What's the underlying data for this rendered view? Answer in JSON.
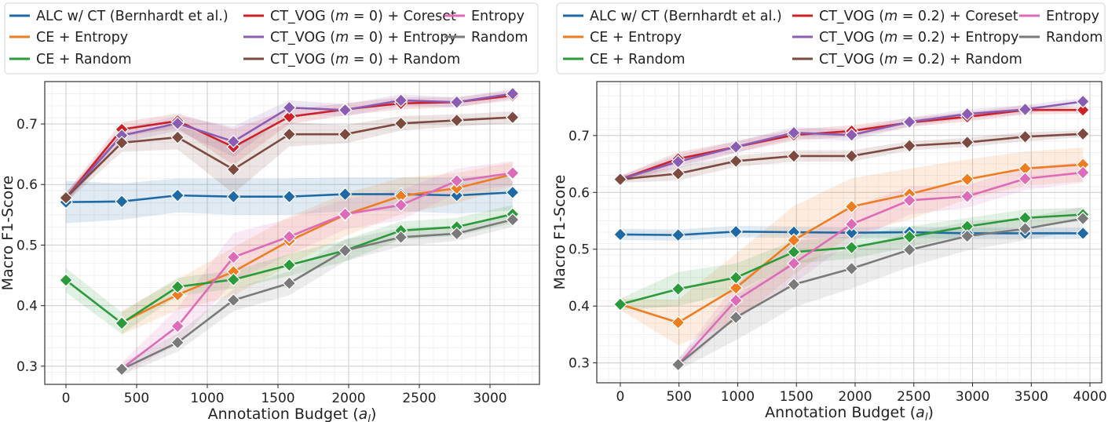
{
  "chart_data": [
    {
      "type": "line",
      "title": "",
      "xlabel": "Annotation Budget (a_l)",
      "xlabel_main": "Annotation Budget (",
      "xlabel_var": "a",
      "xlabel_sub": "l",
      "xlabel_close": ")",
      "ylabel": "Macro F1-Score",
      "xlim": [
        -150,
        3350
      ],
      "ylim": [
        0.27,
        0.77
      ],
      "xticks": [
        0,
        500,
        1000,
        1500,
        2000,
        2500,
        3000
      ],
      "xtick_labels": [
        "0",
        "500",
        "1000",
        "1500",
        "2000",
        "2500",
        "3000"
      ],
      "yticks": [
        0.3,
        0.4,
        0.5,
        0.6,
        0.7
      ],
      "ytick_labels": [
        "0.3",
        "0.4",
        "0.5",
        "0.6",
        "0.7"
      ],
      "grid": true,
      "legend": {
        "placement": "top",
        "columns": [
          [
            {
              "label": "ALC w/ CT (Bernhardt et al.)",
              "color": "#1f6aa5"
            },
            {
              "label": "CE + Entropy",
              "color": "#ee7d22"
            },
            {
              "label": "CE + Random",
              "color": "#2a9a3a"
            }
          ],
          [
            {
              "label_pre": "CT_VOG (",
              "label_var": "m",
              "label_post": " = 0) + Coreset",
              "color": "#cc2127"
            },
            {
              "label_pre": "CT_VOG (",
              "label_var": "m",
              "label_post": " = 0) + Entropy",
              "color": "#8a5cb2"
            },
            {
              "label_pre": "CT_VOG (",
              "label_var": "m",
              "label_post": " = 0) + Random",
              "color": "#7d4a40"
            }
          ],
          [
            {
              "label": "Entropy",
              "color": "#dd6cb8"
            },
            {
              "label": "Random",
              "color": "#7a7a7a"
            }
          ]
        ]
      },
      "series": [
        {
          "name": "ALC w/ CT (Bernhardt et al.)",
          "color": "#1f6aa5",
          "x": [
            0,
            395,
            790,
            1185,
            1580,
            1975,
            2370,
            2765,
            3160
          ],
          "y": [
            0.571,
            0.572,
            0.582,
            0.58,
            0.58,
            0.584,
            0.584,
            0.582,
            0.587
          ],
          "band": [
            0.035,
            0.03,
            0.028,
            0.03,
            0.03,
            0.028,
            0.028,
            0.03,
            0.03
          ]
        },
        {
          "name": "CE + Entropy",
          "color": "#ee7d22",
          "x": [
            395,
            790,
            1185,
            1580,
            1975,
            2370,
            2765,
            3160
          ],
          "y": [
            0.372,
            0.418,
            0.456,
            0.507,
            0.55,
            0.581,
            0.594,
            0.617
          ],
          "band": [
            0.02,
            0.025,
            0.04,
            0.04,
            0.035,
            0.03,
            0.025,
            0.02
          ]
        },
        {
          "name": "CE + Random",
          "color": "#2a9a3a",
          "x": [
            0,
            395,
            790,
            1185,
            1580,
            1975,
            2370,
            2765,
            3160
          ],
          "y": [
            0.442,
            0.371,
            0.431,
            0.443,
            0.467,
            0.491,
            0.524,
            0.53,
            0.551
          ],
          "band": [
            0.02,
            0.018,
            0.015,
            0.015,
            0.018,
            0.018,
            0.015,
            0.015,
            0.015
          ]
        },
        {
          "name": "CT_VOG (m = 0) + Coreset",
          "color": "#cc2127",
          "x": [
            0,
            395,
            790,
            1185,
            1580,
            1975,
            2370,
            2765,
            3160
          ],
          "y": [
            0.578,
            0.691,
            0.705,
            0.662,
            0.712,
            0.724,
            0.734,
            0.736,
            0.747
          ],
          "band": [
            0.008,
            0.012,
            0.012,
            0.03,
            0.012,
            0.01,
            0.01,
            0.008,
            0.008
          ]
        },
        {
          "name": "CT_VOG (m = 0) + Entropy",
          "color": "#8a5cb2",
          "x": [
            0,
            395,
            790,
            1185,
            1580,
            1975,
            2370,
            2765,
            3160
          ],
          "y": [
            0.578,
            0.681,
            0.701,
            0.671,
            0.727,
            0.723,
            0.739,
            0.736,
            0.75
          ],
          "band": [
            0.008,
            0.012,
            0.012,
            0.025,
            0.012,
            0.01,
            0.01,
            0.008,
            0.008
          ]
        },
        {
          "name": "CT_VOG (m = 0) + Random",
          "color": "#7d4a40",
          "x": [
            0,
            395,
            790,
            1185,
            1580,
            1975,
            2370,
            2765,
            3160
          ],
          "y": [
            0.578,
            0.669,
            0.678,
            0.625,
            0.683,
            0.683,
            0.701,
            0.706,
            0.711
          ],
          "band": [
            0.008,
            0.015,
            0.02,
            0.04,
            0.02,
            0.015,
            0.012,
            0.01,
            0.01
          ]
        },
        {
          "name": "Entropy",
          "color": "#dd6cb8",
          "x": [
            395,
            790,
            1185,
            1580,
            1975,
            2370,
            2765,
            3160
          ],
          "y": [
            0.296,
            0.366,
            0.48,
            0.514,
            0.551,
            0.566,
            0.606,
            0.619
          ],
          "band": [
            0.01,
            0.03,
            0.04,
            0.03,
            0.025,
            0.025,
            0.02,
            0.02
          ]
        },
        {
          "name": "Random",
          "color": "#7a7a7a",
          "x": [
            395,
            790,
            1185,
            1580,
            1975,
            2370,
            2765,
            3160
          ],
          "y": [
            0.295,
            0.339,
            0.409,
            0.437,
            0.491,
            0.513,
            0.519,
            0.542
          ],
          "band": [
            0.01,
            0.015,
            0.018,
            0.02,
            0.018,
            0.015,
            0.012,
            0.012
          ]
        }
      ]
    },
    {
      "type": "line",
      "title": "",
      "xlabel": "Annotation Budget (a_l)",
      "xlabel_main": "Annotation Budget (",
      "xlabel_var": "a",
      "xlabel_sub": "l",
      "xlabel_close": ")",
      "ylabel": "Macro F1-Score",
      "xlim": [
        -200,
        4100
      ],
      "ylim": [
        0.265,
        0.795
      ],
      "xticks": [
        0,
        500,
        1000,
        1500,
        2000,
        2500,
        3000,
        3500,
        4000
      ],
      "xtick_labels": [
        "0",
        "500",
        "1000",
        "1500",
        "2000",
        "2500",
        "3000",
        "3500",
        "4000"
      ],
      "yticks": [
        0.3,
        0.4,
        0.5,
        0.6,
        0.7
      ],
      "ytick_labels": [
        "0.3",
        "0.4",
        "0.5",
        "0.6",
        "0.7"
      ],
      "grid": true,
      "legend": {
        "placement": "top",
        "columns": [
          [
            {
              "label": "ALC w/ CT (Bernhardt et al.)",
              "color": "#1f6aa5"
            },
            {
              "label": "CE + Entropy",
              "color": "#ee7d22"
            },
            {
              "label": "CE + Random",
              "color": "#2a9a3a"
            }
          ],
          [
            {
              "label_pre": "CT_VOG (",
              "label_var": "m",
              "label_post": " = 0.2) + Coreset",
              "color": "#cc2127"
            },
            {
              "label_pre": "CT_VOG (",
              "label_var": "m",
              "label_post": " = 0.2) + Entropy",
              "color": "#8a5cb2"
            },
            {
              "label_pre": "CT_VOG (",
              "label_var": "m",
              "label_post": " = 0.2) + Random",
              "color": "#7d4a40"
            }
          ],
          [
            {
              "label": "Entropy",
              "color": "#dd6cb8"
            },
            {
              "label": "Random",
              "color": "#7a7a7a"
            }
          ]
        ]
      },
      "series": [
        {
          "name": "ALC w/ CT (Bernhardt et al.)",
          "color": "#1f6aa5",
          "x": [
            0,
            493,
            985,
            1478,
            1970,
            2463,
            2955,
            3448,
            3940
          ],
          "y": [
            0.526,
            0.525,
            0.531,
            0.53,
            0.529,
            0.53,
            0.528,
            0.528,
            0.528
          ],
          "band": [
            0.01,
            0.01,
            0.01,
            0.01,
            0.01,
            0.01,
            0.01,
            0.01,
            0.01
          ]
        },
        {
          "name": "CE + Entropy",
          "color": "#ee7d22",
          "x": [
            0,
            493,
            985,
            1478,
            1970,
            2463,
            2955,
            3448,
            3940
          ],
          "y": [
            0.403,
            0.371,
            0.432,
            0.516,
            0.575,
            0.597,
            0.623,
            0.642,
            0.649
          ],
          "band": [
            0.01,
            0.04,
            0.06,
            0.06,
            0.05,
            0.045,
            0.035,
            0.03,
            0.03
          ]
        },
        {
          "name": "CE + Random",
          "color": "#2a9a3a",
          "x": [
            0,
            493,
            985,
            1478,
            1970,
            2463,
            2955,
            3448,
            3940
          ],
          "y": [
            0.403,
            0.43,
            0.45,
            0.495,
            0.503,
            0.522,
            0.54,
            0.555,
            0.561
          ],
          "band": [
            0.01,
            0.03,
            0.025,
            0.02,
            0.02,
            0.018,
            0.015,
            0.015,
            0.012
          ]
        },
        {
          "name": "CT_VOG (m = 0.2) + Coreset",
          "color": "#cc2127",
          "x": [
            0,
            493,
            985,
            1478,
            1970,
            2463,
            2955,
            3448,
            3940
          ],
          "y": [
            0.623,
            0.659,
            0.68,
            0.701,
            0.708,
            0.723,
            0.733,
            0.745,
            0.745
          ],
          "band": [
            0.006,
            0.012,
            0.01,
            0.01,
            0.01,
            0.008,
            0.008,
            0.008,
            0.006
          ]
        },
        {
          "name": "CT_VOG (m = 0.2) + Entropy",
          "color": "#8a5cb2",
          "x": [
            0,
            493,
            985,
            1478,
            1970,
            2463,
            2955,
            3448,
            3940
          ],
          "y": [
            0.623,
            0.654,
            0.68,
            0.705,
            0.701,
            0.724,
            0.738,
            0.746,
            0.76
          ],
          "band": [
            0.006,
            0.012,
            0.01,
            0.01,
            0.01,
            0.008,
            0.008,
            0.008,
            0.006
          ]
        },
        {
          "name": "CT_VOG (m = 0.2) + Random",
          "color": "#7d4a40",
          "x": [
            0,
            493,
            985,
            1478,
            1970,
            2463,
            2955,
            3448,
            3940
          ],
          "y": [
            0.623,
            0.633,
            0.655,
            0.664,
            0.664,
            0.682,
            0.688,
            0.698,
            0.703
          ],
          "band": [
            0.006,
            0.012,
            0.01,
            0.01,
            0.01,
            0.008,
            0.008,
            0.008,
            0.006
          ]
        },
        {
          "name": "Entropy",
          "color": "#dd6cb8",
          "x": [
            493,
            985,
            1478,
            1970,
            2463,
            2955,
            3448,
            3940
          ],
          "y": [
            0.297,
            0.41,
            0.475,
            0.544,
            0.586,
            0.593,
            0.624,
            0.635
          ],
          "band": [
            0.01,
            0.03,
            0.035,
            0.03,
            0.025,
            0.02,
            0.02,
            0.018
          ]
        },
        {
          "name": "Random",
          "color": "#7a7a7a",
          "x": [
            493,
            985,
            1478,
            1970,
            2463,
            2955,
            3448,
            3940
          ],
          "y": [
            0.297,
            0.38,
            0.438,
            0.466,
            0.499,
            0.523,
            0.536,
            0.554
          ],
          "band": [
            0.01,
            0.04,
            0.04,
            0.035,
            0.03,
            0.025,
            0.02,
            0.02
          ]
        }
      ]
    }
  ]
}
